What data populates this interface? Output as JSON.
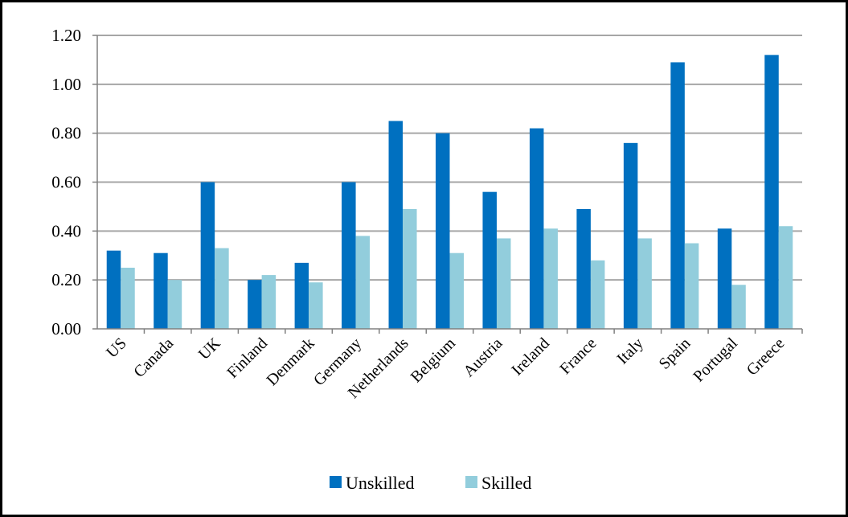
{
  "chart_data": {
    "type": "bar",
    "title": "",
    "xlabel": "",
    "ylabel": "",
    "ylim": [
      0,
      1.2
    ],
    "yticks": [
      "0.00",
      "0.20",
      "0.40",
      "0.60",
      "0.80",
      "1.00",
      "1.20"
    ],
    "grid": true,
    "legend_position": "bottom",
    "categories": [
      "US",
      "Canada",
      "UK",
      "Finland",
      "Denmark",
      "Germany",
      "Netherlands",
      "Belgium",
      "Austria",
      "Ireland",
      "France",
      "Italy",
      "Spain",
      "Portugal",
      "Greece"
    ],
    "series": [
      {
        "name": "Unskilled",
        "color": "#0070C0",
        "values": [
          0.32,
          0.31,
          0.6,
          0.2,
          0.27,
          0.6,
          0.85,
          0.8,
          0.56,
          0.82,
          0.49,
          0.76,
          1.09,
          0.41,
          1.12
        ]
      },
      {
        "name": "Skilled",
        "color": "#92CDDC",
        "values": [
          0.25,
          0.2,
          0.33,
          0.22,
          0.19,
          0.38,
          0.49,
          0.31,
          0.37,
          0.41,
          0.28,
          0.37,
          0.35,
          0.18,
          0.42
        ]
      }
    ]
  }
}
